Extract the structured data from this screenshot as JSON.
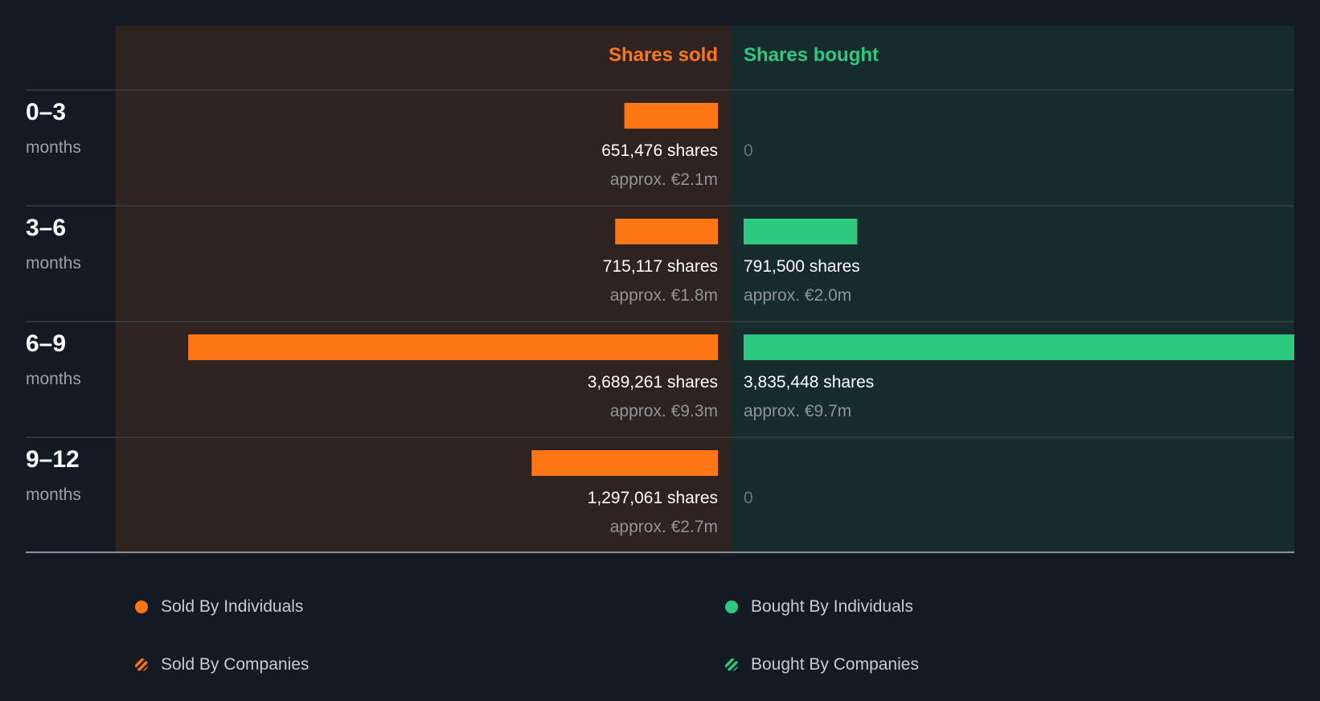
{
  "chart_data": {
    "type": "bar",
    "headers": {
      "sold": "Shares sold",
      "bought": "Shares bought"
    },
    "colors": {
      "sold": "#ff7616",
      "bought": "#2dc97e",
      "sold_panel": "#2e2321",
      "bought_panel": "#162b2b",
      "background": "#131a23"
    },
    "rows": [
      {
        "period": "0–3",
        "unit": "months",
        "sold": 651476,
        "sold_label": "651,476 shares",
        "sold_value": "approx. €2.1m",
        "bought": 0,
        "bought_label": "0",
        "bought_value": ""
      },
      {
        "period": "3–6",
        "unit": "months",
        "sold": 715117,
        "sold_label": "715,117 shares",
        "sold_value": "approx. €1.8m",
        "bought": 791500,
        "bought_label": "791,500 shares",
        "bought_value": "approx. €2.0m"
      },
      {
        "period": "6–9",
        "unit": "months",
        "sold": 3689261,
        "sold_label": "3,689,261 shares",
        "sold_value": "approx. €9.3m",
        "bought": 3835448,
        "bought_label": "3,835,448 shares",
        "bought_value": "approx. €9.7m"
      },
      {
        "period": "9–12",
        "unit": "months",
        "sold": 1297061,
        "sold_label": "1,297,061 shares",
        "sold_value": "approx. €2.7m",
        "bought": 0,
        "bought_label": "0",
        "bought_value": ""
      }
    ],
    "max_value": 3835448
  },
  "legend": {
    "sold_individuals": "Sold By Individuals",
    "bought_individuals": "Bought By Individuals",
    "sold_companies": "Sold By Companies",
    "bought_companies": "Bought By Companies"
  }
}
